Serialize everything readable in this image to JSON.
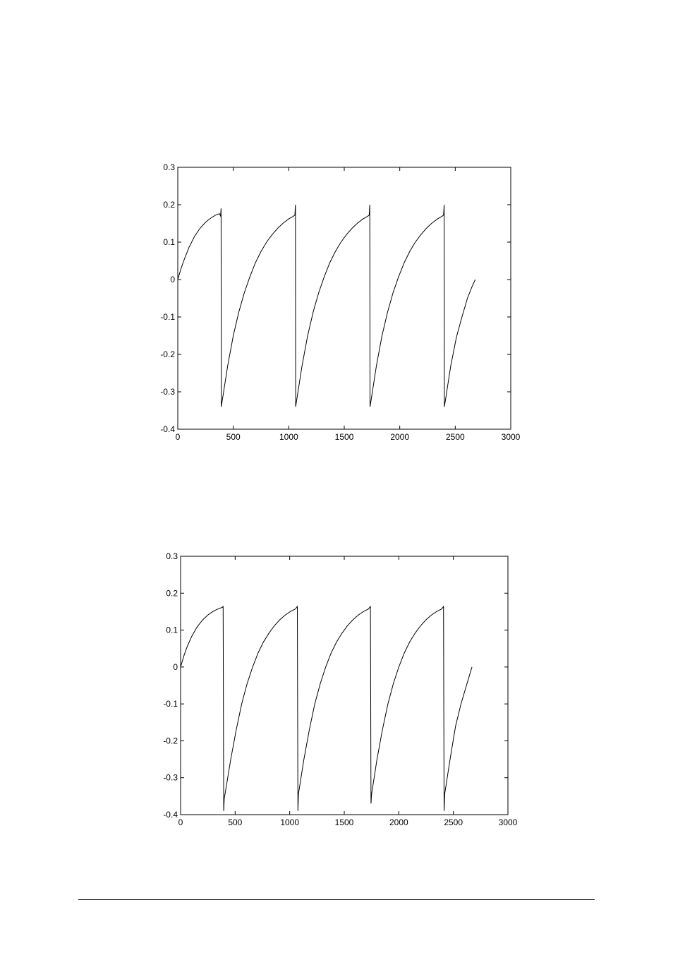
{
  "chart_data": [
    {
      "type": "line",
      "title": "",
      "xlabel": "",
      "ylabel": "",
      "xlim": [
        0,
        3000
      ],
      "ylim": [
        -0.4,
        0.3
      ],
      "xticks": [
        0,
        500,
        1000,
        1500,
        2000,
        2500,
        3000
      ],
      "xtick_labels": [
        "0",
        "500",
        "1000",
        "1500",
        "2000",
        "2500",
        "3000"
      ],
      "yticks": [
        0.3,
        0.2,
        0.1,
        0,
        -0.1,
        -0.2,
        -0.3,
        -0.4
      ],
      "ytick_labels": [
        "0.3",
        "0.2",
        "0.1",
        "0",
        "-0.1",
        "-0.2",
        "-0.3",
        "-0.4"
      ],
      "grid": false,
      "series": [
        {
          "x": [
            0,
            30,
            60,
            100,
            150,
            200,
            250,
            300,
            340,
            375,
            385,
            390,
            392,
            400,
            450,
            500,
            550,
            600,
            650,
            700,
            750,
            800,
            850,
            900,
            950,
            1000,
            1040,
            1055,
            1060,
            1062,
            1070,
            1120,
            1170,
            1220,
            1270,
            1320,
            1370,
            1420,
            1470,
            1520,
            1570,
            1620,
            1670,
            1710,
            1725,
            1730,
            1732,
            1740,
            1790,
            1840,
            1890,
            1940,
            1990,
            2040,
            2090,
            2140,
            2190,
            2240,
            2290,
            2340,
            2380,
            2395,
            2400,
            2402,
            2410,
            2460,
            2510,
            2560,
            2610,
            2650,
            2680
          ],
          "y": [
            0.0,
            0.03,
            0.055,
            0.085,
            0.115,
            0.137,
            0.153,
            0.165,
            0.172,
            0.176,
            0.17,
            0.19,
            -0.34,
            -0.325,
            -0.23,
            -0.15,
            -0.087,
            -0.035,
            0.008,
            0.045,
            0.075,
            0.1,
            0.12,
            0.137,
            0.151,
            0.162,
            0.169,
            0.172,
            0.2,
            -0.34,
            -0.325,
            -0.23,
            -0.15,
            -0.087,
            -0.035,
            0.008,
            0.045,
            0.075,
            0.1,
            0.12,
            0.137,
            0.151,
            0.162,
            0.169,
            0.172,
            0.2,
            -0.34,
            -0.325,
            -0.23,
            -0.15,
            -0.087,
            -0.035,
            0.008,
            0.045,
            0.075,
            0.1,
            0.12,
            0.137,
            0.151,
            0.162,
            0.169,
            0.172,
            0.2,
            -0.34,
            -0.325,
            -0.23,
            -0.155,
            -0.1,
            -0.05,
            -0.02,
            0.0
          ]
        }
      ]
    },
    {
      "type": "line",
      "title": "",
      "xlabel": "",
      "ylabel": "",
      "xlim": [
        0,
        3000
      ],
      "ylim": [
        -0.4,
        0.3
      ],
      "xticks": [
        0,
        500,
        1000,
        1500,
        2000,
        2500,
        3000
      ],
      "xtick_labels": [
        "0",
        "500",
        "1000",
        "1500",
        "2000",
        "2500",
        "3000"
      ],
      "yticks": [
        0.3,
        0.2,
        0.1,
        0,
        -0.1,
        -0.2,
        -0.3,
        -0.4
      ],
      "ytick_labels": [
        "0.3",
        "0.2",
        "0.1",
        "0",
        "-0.1",
        "-0.2",
        "-0.3",
        "-0.4"
      ],
      "grid": false,
      "series": [
        {
          "x": [
            0,
            30,
            60,
            100,
            150,
            200,
            250,
            300,
            340,
            385,
            390,
            395,
            400,
            410,
            460,
            510,
            560,
            610,
            660,
            710,
            760,
            810,
            860,
            910,
            960,
            1010,
            1050,
            1065,
            1070,
            1075,
            1080,
            1130,
            1180,
            1230,
            1280,
            1330,
            1380,
            1430,
            1480,
            1530,
            1580,
            1630,
            1680,
            1720,
            1735,
            1740,
            1745,
            1750,
            1800,
            1850,
            1900,
            1950,
            2000,
            2050,
            2100,
            2150,
            2200,
            2250,
            2300,
            2350,
            2390,
            2405,
            2410,
            2415,
            2420,
            2470,
            2520,
            2570,
            2620,
            2650,
            2670
          ],
          "y": [
            0.0,
            0.03,
            0.055,
            0.082,
            0.108,
            0.127,
            0.141,
            0.151,
            0.157,
            0.162,
            0.165,
            -0.39,
            -0.355,
            -0.34,
            -0.25,
            -0.17,
            -0.1,
            -0.045,
            0.0,
            0.038,
            0.068,
            0.092,
            0.112,
            0.128,
            0.141,
            0.151,
            0.157,
            0.162,
            0.165,
            -0.39,
            -0.345,
            -0.25,
            -0.17,
            -0.1,
            -0.045,
            0.0,
            0.038,
            0.068,
            0.092,
            0.112,
            0.128,
            0.141,
            0.151,
            0.157,
            0.162,
            0.165,
            -0.37,
            -0.345,
            -0.25,
            -0.17,
            -0.1,
            -0.045,
            0.0,
            0.038,
            0.068,
            0.092,
            0.112,
            0.128,
            0.141,
            0.151,
            0.157,
            0.162,
            0.165,
            -0.39,
            -0.345,
            -0.25,
            -0.16,
            -0.1,
            -0.05,
            -0.02,
            0.0
          ]
        }
      ]
    }
  ]
}
